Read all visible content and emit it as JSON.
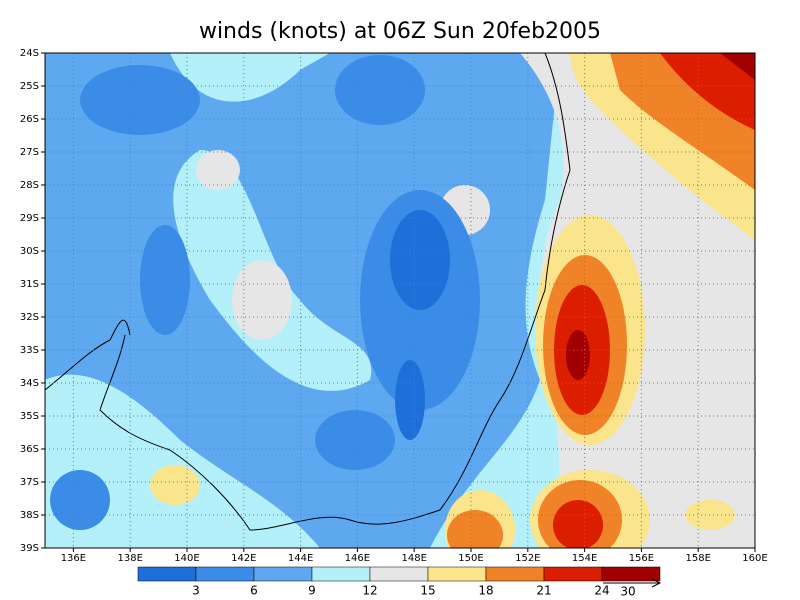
{
  "title": "winds (knots) at 06Z Sun 20feb2005",
  "xlim": [
    135,
    160
  ],
  "ylim": [
    -24,
    -39
  ],
  "xticks": [
    {
      "value": 136,
      "label": "136E"
    },
    {
      "value": 138,
      "label": "138E"
    },
    {
      "value": 140,
      "label": "140E"
    },
    {
      "value": 142,
      "label": "142E"
    },
    {
      "value": 144,
      "label": "144E"
    },
    {
      "value": 146,
      "label": "146E"
    },
    {
      "value": 148,
      "label": "148E"
    },
    {
      "value": 150,
      "label": "150E"
    },
    {
      "value": 152,
      "label": "152E"
    },
    {
      "value": 154,
      "label": "154E"
    },
    {
      "value": 156,
      "label": "156E"
    },
    {
      "value": 158,
      "label": "158E"
    },
    {
      "value": 160,
      "label": "160E"
    }
  ],
  "yticks": [
    {
      "value": -24,
      "label": "24S"
    },
    {
      "value": -25,
      "label": "25S"
    },
    {
      "value": -26,
      "label": "26S"
    },
    {
      "value": -27,
      "label": "27S"
    },
    {
      "value": -28,
      "label": "28S"
    },
    {
      "value": -29,
      "label": "29S"
    },
    {
      "value": -30,
      "label": "30S"
    },
    {
      "value": -31,
      "label": "31S"
    },
    {
      "value": -32,
      "label": "32S"
    },
    {
      "value": -33,
      "label": "33S"
    },
    {
      "value": -34,
      "label": "34S"
    },
    {
      "value": -35,
      "label": "35S"
    },
    {
      "value": -36,
      "label": "36S"
    },
    {
      "value": -37,
      "label": "37S"
    },
    {
      "value": -38,
      "label": "38S"
    },
    {
      "value": -39,
      "label": "39S"
    }
  ],
  "colorbar": {
    "levels": [
      3,
      6,
      9,
      12,
      15,
      18,
      21,
      24
    ],
    "colors": [
      "#1f6fd8",
      "#3a8ce6",
      "#5ea8f0",
      "#b4f0fa",
      "#e6e6e6",
      "#fae48c",
      "#f08228",
      "#dc1e00",
      "#a00000"
    ]
  },
  "reference_vector": 30
}
